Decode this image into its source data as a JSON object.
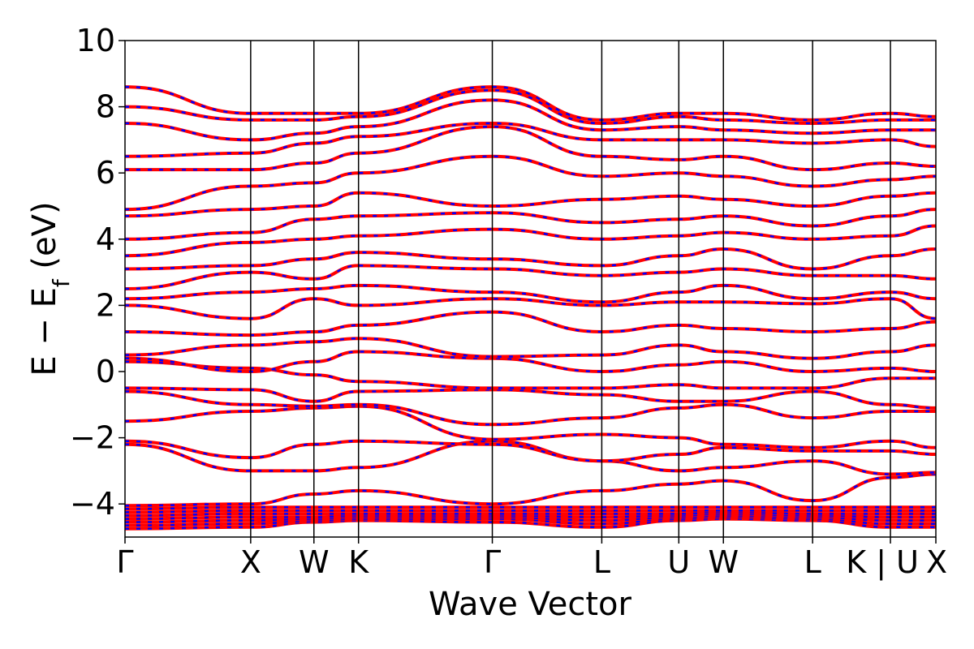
{
  "chart_data": {
    "type": "line",
    "xlabel": "Wave Vector",
    "ylabel": "E − E_f (eV)",
    "ylabel_parts": {
      "main": "E − E",
      "sub": "f",
      "unit": " (eV)"
    },
    "ylim": [
      -5,
      10
    ],
    "yticks": [
      10,
      8,
      6,
      4,
      2,
      0,
      -2,
      -4
    ],
    "ytick_labels": [
      "10",
      "8",
      "6",
      "4",
      "2",
      "0",
      "−2",
      "−4"
    ],
    "xlim": [
      0,
      1
    ],
    "kpoints": [
      {
        "label": "Γ",
        "x": 0.0
      },
      {
        "label": "X",
        "x": 0.155
      },
      {
        "label": "W",
        "x": 0.233
      },
      {
        "label": "K",
        "x": 0.288
      },
      {
        "label": "Γ",
        "x": 0.453
      },
      {
        "label": "L",
        "x": 0.588
      },
      {
        "label": "U",
        "x": 0.683
      },
      {
        "label": "W",
        "x": 0.738
      },
      {
        "label": "L",
        "x": 0.848
      },
      {
        "label": "K | U",
        "x": 0.944
      },
      {
        "label": "X",
        "x": 1.0
      }
    ],
    "grid": false,
    "legend": "none",
    "series_style": [
      {
        "name": "",
        "color": "#ff0000",
        "line": "solid"
      },
      {
        "name": "",
        "color": "#0000ff",
        "line": "dashed"
      }
    ],
    "bands": [
      [
        -4.75,
        -4.7,
        -4.55,
        -4.5,
        -4.55,
        -4.7,
        -4.5,
        -4.45,
        -4.5,
        -4.7,
        -4.7
      ],
      [
        -4.65,
        -4.6,
        -4.5,
        -4.45,
        -4.45,
        -4.6,
        -4.45,
        -4.4,
        -4.45,
        -4.6,
        -4.6
      ],
      [
        -4.55,
        -4.5,
        -4.45,
        -4.4,
        -4.4,
        -4.5,
        -4.4,
        -4.35,
        -4.4,
        -4.5,
        -4.5
      ],
      [
        -4.45,
        -4.4,
        -4.4,
        -4.35,
        -4.35,
        -4.4,
        -4.35,
        -4.3,
        -4.35,
        -4.4,
        -4.4
      ],
      [
        -4.35,
        -4.3,
        -4.3,
        -4.3,
        -4.3,
        -4.3,
        -4.3,
        -4.25,
        -4.3,
        -4.3,
        -4.3
      ],
      [
        -4.25,
        -4.2,
        -4.2,
        -4.2,
        -4.2,
        -4.2,
        -4.2,
        -4.2,
        -4.2,
        -4.2,
        -4.2
      ],
      [
        -4.15,
        -4.1,
        -4.1,
        -4.1,
        -4.1,
        -4.1,
        -4.1,
        -4.1,
        -4.1,
        -4.1,
        -4.1
      ],
      [
        -4.05,
        -4.0,
        -3.7,
        -3.6,
        -4.0,
        -3.6,
        -3.4,
        -3.3,
        -3.9,
        -3.2,
        -3.1
      ],
      [
        -2.2,
        -3.0,
        -3.0,
        -2.9,
        -2.1,
        -2.7,
        -3.0,
        -2.9,
        -2.7,
        -3.1,
        -3.05
      ],
      [
        -2.1,
        -2.6,
        -2.2,
        -2.1,
        -2.2,
        -2.7,
        -2.5,
        -2.3,
        -2.4,
        -2.4,
        -2.5
      ],
      [
        -1.5,
        -1.2,
        -1.1,
        -1.05,
        -2.05,
        -1.9,
        -2.0,
        -2.2,
        -2.3,
        -2.1,
        -2.3
      ],
      [
        -0.6,
        -1.0,
        -1.05,
        -1.0,
        -1.6,
        -1.4,
        -1.1,
        -1.0,
        -1.4,
        -1.2,
        -1.2
      ],
      [
        -0.5,
        -0.55,
        -0.9,
        -0.6,
        -0.55,
        -0.7,
        -0.9,
        -0.9,
        -0.6,
        -1.0,
        -1.1
      ],
      [
        0.3,
        0.1,
        -0.1,
        -0.3,
        -0.5,
        -0.5,
        -0.4,
        -0.5,
        -0.5,
        -0.2,
        -0.2
      ],
      [
        0.4,
        0.0,
        0.3,
        0.6,
        0.4,
        0.0,
        0.2,
        0.3,
        0.0,
        0.1,
        0.0
      ],
      [
        0.5,
        0.8,
        0.9,
        1.0,
        0.45,
        0.5,
        0.8,
        0.6,
        0.4,
        0.6,
        0.8
      ],
      [
        1.2,
        1.1,
        1.2,
        1.4,
        1.8,
        1.2,
        1.4,
        1.3,
        1.2,
        1.3,
        1.5
      ],
      [
        2.0,
        1.6,
        2.2,
        2.0,
        2.2,
        2.0,
        2.1,
        2.1,
        2.05,
        2.2,
        1.6
      ],
      [
        2.2,
        2.4,
        2.5,
        2.6,
        2.4,
        2.1,
        2.4,
        2.6,
        2.2,
        2.4,
        2.2
      ],
      [
        2.5,
        3.0,
        2.8,
        3.2,
        3.1,
        2.9,
        3.0,
        3.1,
        2.9,
        2.9,
        2.8
      ],
      [
        3.1,
        3.2,
        3.4,
        3.6,
        3.4,
        3.2,
        3.5,
        3.7,
        3.1,
        3.5,
        3.7
      ],
      [
        3.5,
        3.9,
        4.0,
        4.1,
        4.3,
        4.0,
        4.1,
        4.2,
        4.0,
        4.1,
        4.4
      ],
      [
        4.0,
        4.2,
        4.6,
        4.7,
        4.8,
        4.5,
        4.6,
        4.7,
        4.4,
        4.7,
        4.9
      ],
      [
        4.7,
        4.9,
        5.0,
        5.4,
        5.0,
        5.2,
        5.3,
        5.2,
        5.0,
        5.3,
        5.4
      ],
      [
        4.9,
        5.6,
        5.7,
        6.0,
        6.5,
        5.9,
        6.0,
        5.9,
        5.6,
        5.8,
        5.9
      ],
      [
        6.1,
        6.1,
        6.3,
        6.6,
        7.4,
        6.5,
        6.4,
        6.5,
        6.1,
        6.3,
        6.2
      ],
      [
        6.5,
        6.6,
        6.9,
        7.1,
        7.5,
        7.0,
        7.0,
        7.0,
        6.9,
        7.0,
        6.8
      ],
      [
        7.5,
        7.0,
        7.2,
        7.4,
        8.2,
        7.3,
        7.4,
        7.3,
        7.2,
        7.3,
        7.3
      ],
      [
        8.0,
        7.6,
        7.6,
        7.7,
        8.5,
        7.5,
        7.7,
        7.6,
        7.5,
        7.6,
        7.6
      ],
      [
        8.6,
        7.8,
        7.8,
        7.8,
        8.6,
        7.6,
        7.8,
        7.8,
        7.6,
        7.8,
        7.7
      ]
    ]
  }
}
